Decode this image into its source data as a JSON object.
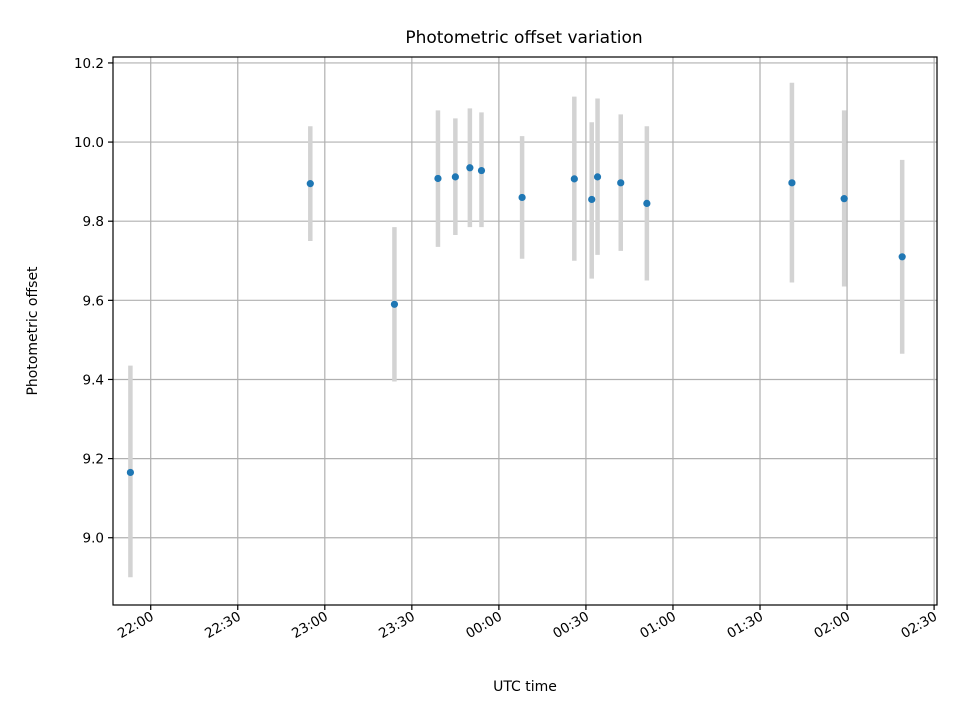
{
  "chart_data": {
    "type": "scatter",
    "title": "Photometric offset variation",
    "xlabel": "UTC time",
    "ylabel": "Photometric offset",
    "x_unit": "time-of-day",
    "xlim": [
      "21:47",
      "02:31"
    ],
    "ylim": [
      8.83,
      10.215
    ],
    "x_ticks": [
      "22:00",
      "22:30",
      "23:00",
      "23:30",
      "00:00",
      "00:30",
      "01:00",
      "01:30",
      "02:00",
      "02:30"
    ],
    "y_ticks": [
      "9.0",
      "9.2",
      "9.4",
      "9.6",
      "9.8",
      "10.0",
      "10.2"
    ],
    "grid": true,
    "legend": "none",
    "colors": {
      "point": "#1f77b4",
      "errorbar": "#d3d3d3"
    },
    "points": [
      {
        "x": "21:53",
        "y": 9.165,
        "err_low": 8.9,
        "err_high": 9.435
      },
      {
        "x": "22:55",
        "y": 9.895,
        "err_low": 9.75,
        "err_high": 10.04
      },
      {
        "x": "23:24",
        "y": 9.59,
        "err_low": 9.395,
        "err_high": 9.785
      },
      {
        "x": "23:39",
        "y": 9.908,
        "err_low": 9.735,
        "err_high": 10.08
      },
      {
        "x": "23:45",
        "y": 9.912,
        "err_low": 9.765,
        "err_high": 10.06
      },
      {
        "x": "23:50",
        "y": 9.935,
        "err_low": 9.785,
        "err_high": 10.085
      },
      {
        "x": "23:54",
        "y": 9.928,
        "err_low": 9.785,
        "err_high": 10.075
      },
      {
        "x": "00:08",
        "y": 9.86,
        "err_low": 9.705,
        "err_high": 10.015
      },
      {
        "x": "00:26",
        "y": 9.907,
        "err_low": 9.7,
        "err_high": 10.115
      },
      {
        "x": "00:32",
        "y": 9.855,
        "err_low": 9.655,
        "err_high": 10.05
      },
      {
        "x": "00:34",
        "y": 9.912,
        "err_low": 9.715,
        "err_high": 10.11
      },
      {
        "x": "00:42",
        "y": 9.897,
        "err_low": 9.725,
        "err_high": 10.07
      },
      {
        "x": "00:51",
        "y": 9.845,
        "err_low": 9.65,
        "err_high": 10.04
      },
      {
        "x": "01:41",
        "y": 9.897,
        "err_low": 9.645,
        "err_high": 10.15
      },
      {
        "x": "01:59",
        "y": 9.857,
        "err_low": 9.635,
        "err_high": 10.08
      },
      {
        "x": "02:19",
        "y": 9.71,
        "err_low": 9.465,
        "err_high": 9.955
      }
    ]
  }
}
